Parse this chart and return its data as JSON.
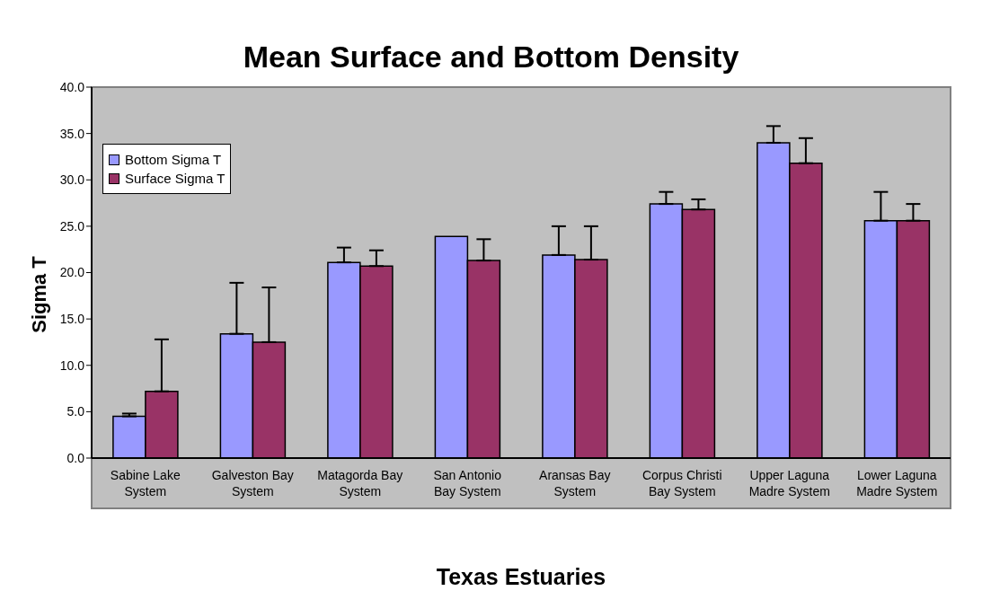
{
  "chart_data": {
    "type": "bar",
    "title": "Mean Surface and Bottom Density",
    "xlabel": "Texas Estuaries",
    "ylabel": "Sigma T",
    "categories": [
      "Sabine Lake System",
      "Galveston Bay System",
      "Matagorda Bay System",
      "San Antonio Bay System",
      "Aransas Bay System",
      "Corpus Christi Bay System",
      "Upper Laguna Madre System",
      "Lower Laguna Madre System"
    ],
    "series": [
      {
        "name": "Bottom Sigma T",
        "color": "#9999ff",
        "values": [
          4.5,
          13.4,
          21.1,
          23.9,
          21.9,
          27.4,
          34.0,
          25.6
        ],
        "errors": [
          [
            4.5,
            4.8
          ],
          [
            13.4,
            18.9
          ],
          [
            21.1,
            22.7
          ],
          null,
          [
            21.9,
            25.0
          ],
          [
            27.4,
            28.7
          ],
          [
            34.0,
            35.8
          ],
          [
            25.6,
            28.7
          ]
        ]
      },
      {
        "name": "Surface Sigma T",
        "color": "#993366",
        "values": [
          7.2,
          12.5,
          20.7,
          21.3,
          21.4,
          26.8,
          31.8,
          25.6
        ],
        "errors": [
          [
            7.2,
            12.8
          ],
          [
            12.5,
            18.4
          ],
          [
            20.7,
            22.4
          ],
          [
            21.3,
            23.6
          ],
          [
            21.4,
            25.0
          ],
          [
            26.8,
            27.9
          ],
          [
            31.8,
            34.5
          ],
          [
            25.6,
            27.4
          ]
        ]
      }
    ],
    "ylim": [
      0,
      40
    ],
    "yticks": [
      {
        "value": 0,
        "label": "0.0"
      },
      {
        "value": 5,
        "label": "5.0"
      },
      {
        "value": 10,
        "label": "10.0"
      },
      {
        "value": 15,
        "label": "15.0"
      },
      {
        "value": 20,
        "label": "20.0"
      },
      {
        "value": 25,
        "label": "25.0"
      },
      {
        "value": 30,
        "label": "30.0"
      },
      {
        "value": 35,
        "label": "35.0"
      },
      {
        "value": 40,
        "label": "40.0"
      }
    ],
    "legend": "top left"
  }
}
